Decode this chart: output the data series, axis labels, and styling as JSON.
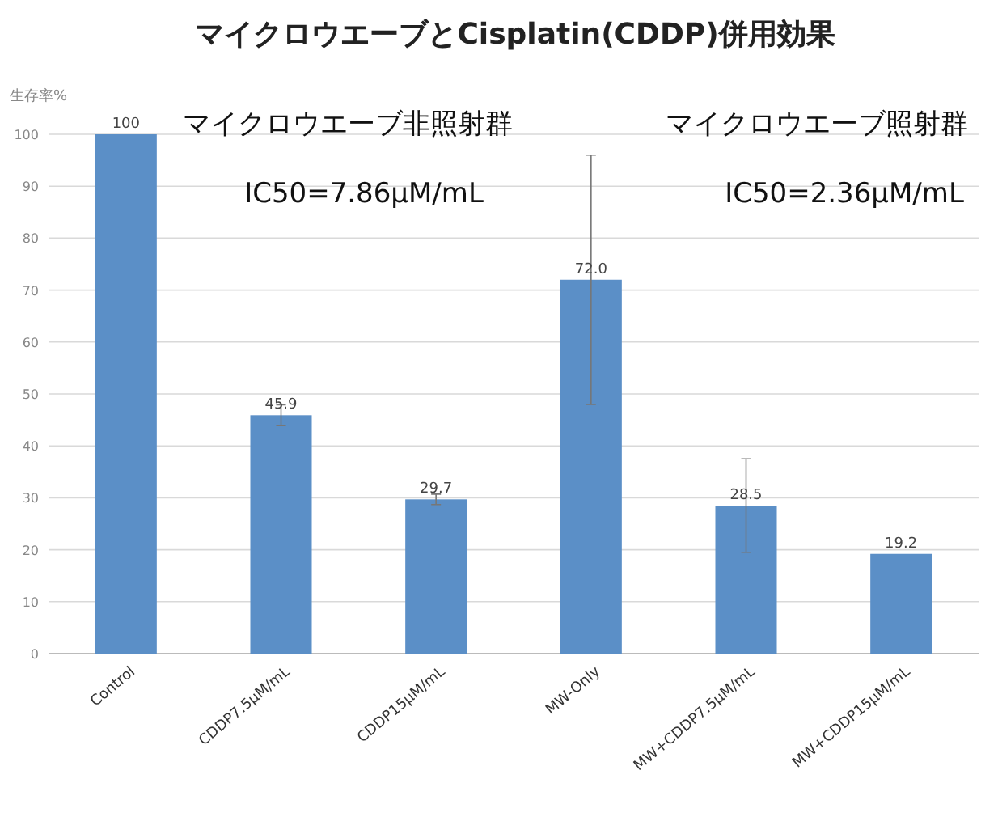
{
  "chart_data": {
    "type": "bar",
    "title": "マイクロウエーブとCisplatin(CDDP)併用効果",
    "ylabel": "生存率%",
    "annotations": [
      "マイクロウエーブ非照射群",
      "マイクロウエーブ照射群",
      "IC50=7.86μM/mL",
      "IC50=2.36μM/mL"
    ],
    "categories": [
      "Control",
      "CDDP7.5μM/mL",
      "CDDP15μM/mL",
      "MW-Only",
      "MW+CDDP7.5μM/mL",
      "MW+CDDP15μM/mL"
    ],
    "values": [
      100,
      45.9,
      29.7,
      72.0,
      28.5,
      19.2
    ],
    "value_labels": [
      "100",
      "45.9",
      "29.7",
      "72.0",
      "28.5",
      "19.2"
    ],
    "errors": [
      null,
      2,
      1,
      24,
      9,
      null
    ],
    "color": "#5b8fc7",
    "ylim": [
      0,
      100
    ],
    "yticks": [
      0,
      10,
      20,
      30,
      40,
      50,
      60,
      70,
      80,
      90,
      100
    ],
    "grid": "y"
  }
}
